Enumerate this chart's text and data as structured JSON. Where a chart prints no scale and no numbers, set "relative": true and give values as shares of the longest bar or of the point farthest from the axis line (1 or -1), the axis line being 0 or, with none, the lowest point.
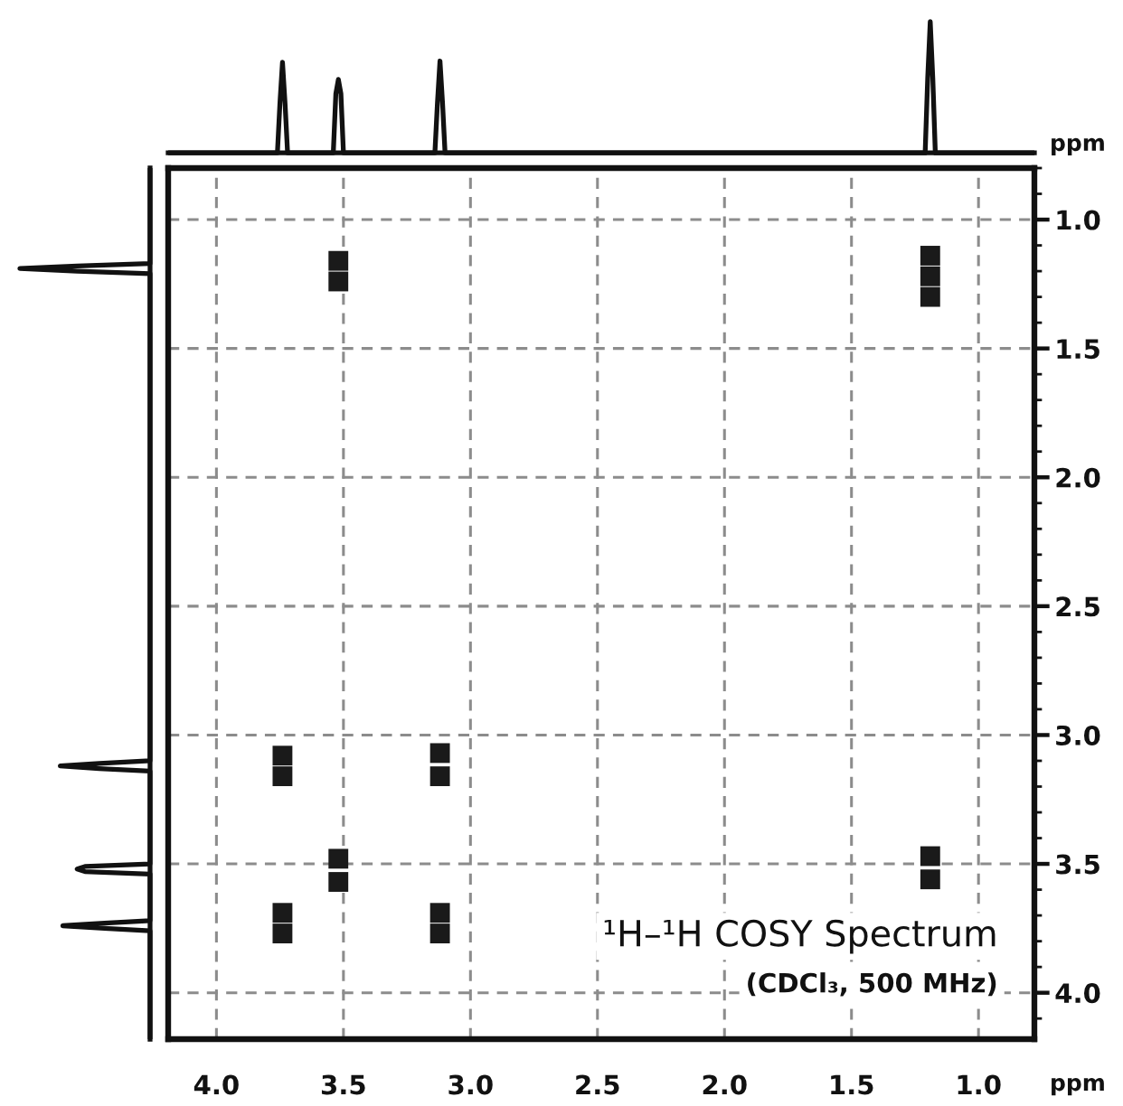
{
  "chart_data": [
    {
      "type": "line",
      "relative": true,
      "xlim": [
        4.19,
        0.78
      ],
      "tick_labels": false,
      "series": [
        {
          "color": "#111111",
          "x": [
            4.19,
            3.76,
            3.75,
            3.74,
            3.73,
            3.72,
            3.54,
            3.53,
            3.52,
            3.51,
            3.5,
            3.14,
            3.13,
            3.12,
            3.11,
            3.1,
            1.21,
            1.2,
            1.19,
            1.18,
            1.17,
            0.78
          ],
          "values": [
            0,
            0,
            0.38,
            0.69,
            0.38,
            0,
            0,
            0.45,
            0.56,
            0.45,
            0,
            0,
            0.38,
            0.7,
            0.38,
            0,
            0,
            0.57,
            1,
            0.57,
            0,
            0
          ]
        }
      ]
    },
    {
      "type": "line",
      "relative": true,
      "orientation": "horizontal",
      "ylim": [
        4.18,
        0.8
      ],
      "tick_labels": false,
      "series": [
        {
          "color": "#111111",
          "x": [
            4.18,
            3.76,
            3.75,
            3.74,
            3.73,
            3.72,
            3.54,
            3.53,
            3.52,
            3.51,
            3.5,
            3.14,
            3.13,
            3.12,
            3.11,
            3.1,
            1.21,
            1.2,
            1.19,
            1.18,
            1.17,
            0.8
          ],
          "values": [
            0,
            0,
            -0.35,
            -0.67,
            -0.35,
            0,
            0,
            -0.5,
            -0.56,
            -0.5,
            0,
            0,
            -0.39,
            -0.69,
            -0.39,
            0,
            0,
            -0.56,
            -1,
            -0.56,
            0,
            0
          ]
        }
      ]
    },
    {
      "type": "scatter",
      "marker": "square",
      "xlim": [
        4.19,
        0.78
      ],
      "ylim": [
        4.18,
        0.8
      ],
      "xticks": [
        {
          "value": 4,
          "label": "4.0"
        },
        3.5,
        {
          "value": 3,
          "label": "3.0"
        },
        2.5,
        {
          "value": 2,
          "label": "2.0"
        },
        1.5,
        {
          "value": 1,
          "label": "1.0"
        }
      ],
      "yticks": [
        {
          "value": 1,
          "label": "1.0"
        },
        1.5,
        {
          "value": 2,
          "label": "2.0"
        },
        2.5,
        {
          "value": 3,
          "label": "3.0"
        },
        3.5,
        {
          "value": 4,
          "label": "4.0"
        }
      ],
      "grid": true,
      "xlabel": "ppm",
      "ylabel": "ppm",
      "annotations": [
        "¹H–¹H COSY Spectrum",
        "(CDCl₃, 500 MHz)"
      ],
      "series": [
        {
          "color": "#1a1a1a",
          "x": [
            3.52,
            3.52,
            1.19,
            1.19,
            1.19,
            3.74,
            3.74,
            3.12,
            3.12,
            3.52,
            3.52,
            1.19,
            1.19,
            3.74,
            3.74,
            3.12,
            3.12
          ],
          "values": [
            1.16,
            1.24,
            1.14,
            1.22,
            1.3,
            3.08,
            3.16,
            3.07,
            3.16,
            3.48,
            3.57,
            3.47,
            3.56,
            3.69,
            3.77,
            3.69,
            3.77
          ]
        }
      ]
    }
  ]
}
